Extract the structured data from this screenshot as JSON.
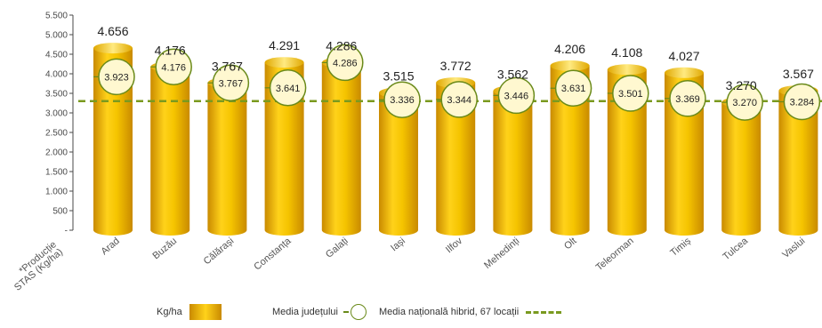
{
  "colors": {
    "bar": "#f5c400",
    "bar_dark": "#c98a00",
    "bar_light": "#ffe36a",
    "circle_stroke": "#6a8a1a",
    "circle_fill": "#fff8d0",
    "national_line": "#7a9a1f",
    "axis": "#4a4a4a"
  },
  "chart_data": {
    "type": "bar",
    "ylabel": "*Producție STAS (Kg/ha)",
    "ylim": [
      0,
      5500
    ],
    "yticks": [
      0,
      500,
      1000,
      1500,
      2000,
      2500,
      3000,
      3500,
      4000,
      4500,
      5000,
      5500
    ],
    "ytick_labels": [
      "-",
      "500",
      "1.000",
      "1.500",
      "2.000",
      "2.500",
      "3.000",
      "3.500",
      "4.000",
      "4.500",
      "5.000",
      "5.500"
    ],
    "categories": [
      "Arad",
      "Buzău",
      "Călărași",
      "Constanța",
      "Galați",
      "Iași",
      "Ilfov",
      "Mehedinți",
      "Olt",
      "Teleorman",
      "Timiș",
      "Tulcea",
      "Vaslui"
    ],
    "series": [
      {
        "name": "Kg/ha",
        "values": [
          4656,
          4176,
          3767,
          4291,
          4286,
          3515,
          3772,
          3562,
          4206,
          4108,
          4027,
          3270,
          3567
        ],
        "labels": [
          "4.656",
          "4.176",
          "3.767",
          "4.291",
          "4.286",
          "3.515",
          "3.772",
          "3.562",
          "4.206",
          "4.108",
          "4.027",
          "3.270",
          "3.567"
        ]
      },
      {
        "name": "Media județului",
        "values": [
          3923,
          4176,
          3767,
          3641,
          4286,
          3336,
          3344,
          3446,
          3631,
          3501,
          3369,
          3270,
          3284
        ],
        "labels": [
          "3.923",
          "4.176",
          "3.767",
          "3.641",
          "4.286",
          "3.336",
          "3.344",
          "3.446",
          "3.631",
          "3.501",
          "3.369",
          "3.270",
          "3.284"
        ]
      }
    ],
    "national_average": {
      "name": "Media națională hibrid, 67 locații"
    },
    "legend_position": "bottom"
  },
  "legend": {
    "bars_label": "Kg/ha",
    "county_label": "Media județului",
    "national_label": "Media națională hibrid, 67 locații"
  }
}
